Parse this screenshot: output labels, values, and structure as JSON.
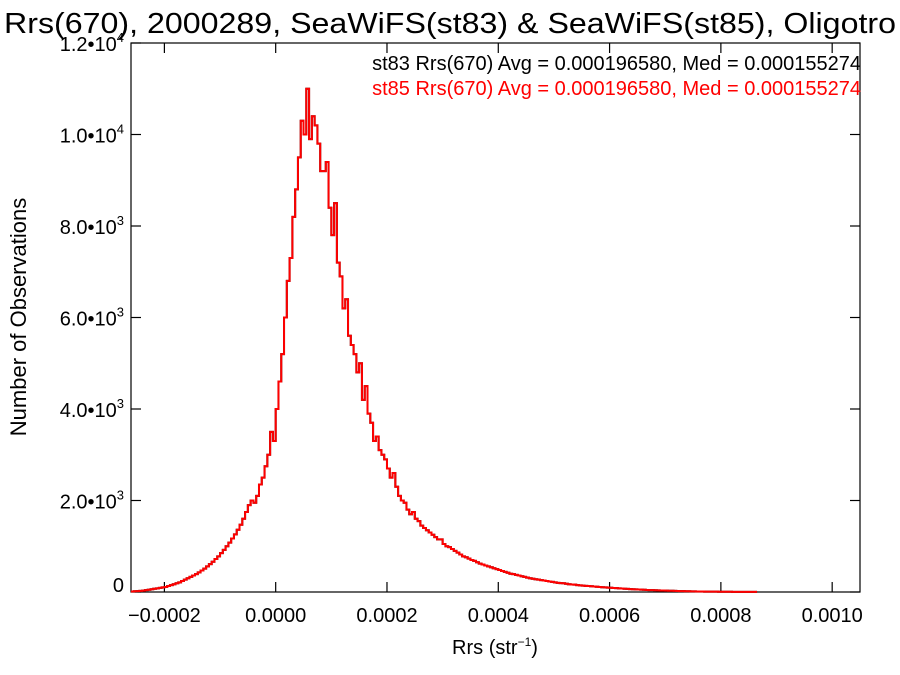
{
  "chart_data": {
    "type": "histogram",
    "title": "Rrs(670), 2000289, SeaWiFS(st83) & SeaWiFS(st85), Oligotro",
    "xlabel_base": "Rrs (str",
    "xlabel_exp": "−1",
    "xlabel_close": ")",
    "ylabel": "Number of Observations",
    "xlim": [
      -0.00026,
      0.00105
    ],
    "ylim": [
      0,
      12000
    ],
    "x_ticks": [
      -0.0002,
      0.0,
      0.0002,
      0.0004,
      0.0006,
      0.0008,
      0.001
    ],
    "x_tick_labels": [
      "−0.0002",
      "0.0000",
      "0.0002",
      "0.0004",
      "0.0006",
      "0.0008",
      "0.0010"
    ],
    "y_ticks": [
      0,
      2000,
      4000,
      6000,
      8000,
      10000,
      12000
    ],
    "y_tick_labels": [
      {
        "base": "0",
        "exp": ""
      },
      {
        "base": "2.0•10",
        "exp": "3"
      },
      {
        "base": "4.0•10",
        "exp": "3"
      },
      {
        "base": "6.0•10",
        "exp": "3"
      },
      {
        "base": "8.0•10",
        "exp": "3"
      },
      {
        "base": "1.0•10",
        "exp": "4"
      },
      {
        "base": "1.2•10",
        "exp": "4"
      }
    ],
    "annotations": [
      {
        "text": "st83 Rrs(670) Avg = 0.000196580, Med = 0.000155274",
        "color": "#000000"
      },
      {
        "text": "st85 Rrs(670) Avg = 0.000196580, Med = 0.000155274",
        "color": "#ff0000"
      }
    ],
    "series": [
      {
        "name": "st83",
        "color": "#000000"
      },
      {
        "name": "st85",
        "color": "#ff0000"
      }
    ],
    "bin_width": 5e-06,
    "bin_start": -0.00026,
    "counts": [
      10,
      15,
      20,
      25,
      30,
      40,
      50,
      60,
      70,
      80,
      90,
      100,
      110,
      130,
      150,
      170,
      190,
      210,
      240,
      270,
      300,
      330,
      360,
      390,
      430,
      470,
      510,
      560,
      610,
      660,
      720,
      780,
      850,
      920,
      1000,
      1080,
      1170,
      1260,
      1360,
      1470,
      1600,
      1750,
      1900,
      2000,
      1950,
      2100,
      2350,
      2500,
      2750,
      3000,
      3500,
      3300,
      4000,
      4600,
      5200,
      6000,
      6800,
      7300,
      8200,
      8800,
      9500,
      10300,
      10000,
      11000,
      9900,
      10400,
      10200,
      9800,
      9200,
      9200,
      9400,
      8400,
      7800,
      8500,
      7200,
      6900,
      6200,
      6400,
      5600,
      5400,
      5200,
      4800,
      5000,
      4200,
      4500,
      3900,
      3700,
      3300,
      3400,
      3100,
      3000,
      2900,
      2700,
      2500,
      2600,
      2300,
      2100,
      2000,
      1950,
      1800,
      1700,
      1750,
      1600,
      1550,
      1450,
      1400,
      1350,
      1300,
      1250,
      1200,
      1150,
      1150,
      1050,
      1000,
      980,
      940,
      900,
      860,
      820,
      780,
      760,
      730,
      700,
      680,
      650,
      620,
      600,
      580,
      560,
      540,
      520,
      500,
      480,
      460,
      440,
      420,
      400,
      390,
      375,
      360,
      345,
      330,
      315,
      300,
      290,
      280,
      270,
      260,
      250,
      240,
      230,
      220,
      210,
      200,
      195,
      190,
      180,
      170,
      165,
      160,
      150,
      145,
      140,
      135,
      130,
      125,
      120,
      115,
      110,
      105,
      100,
      96,
      92,
      88,
      84,
      80,
      76,
      72,
      68,
      64,
      60,
      57,
      54,
      51,
      48,
      45,
      42,
      40,
      38,
      36,
      34,
      32,
      30,
      28,
      26,
      24,
      22,
      20,
      18,
      16,
      15,
      14,
      13,
      12,
      11,
      10,
      9,
      8,
      8,
      7,
      7,
      6,
      6,
      5,
      5,
      5,
      4,
      4,
      3,
      3,
      3,
      2,
      2,
      2,
      2
    ]
  }
}
